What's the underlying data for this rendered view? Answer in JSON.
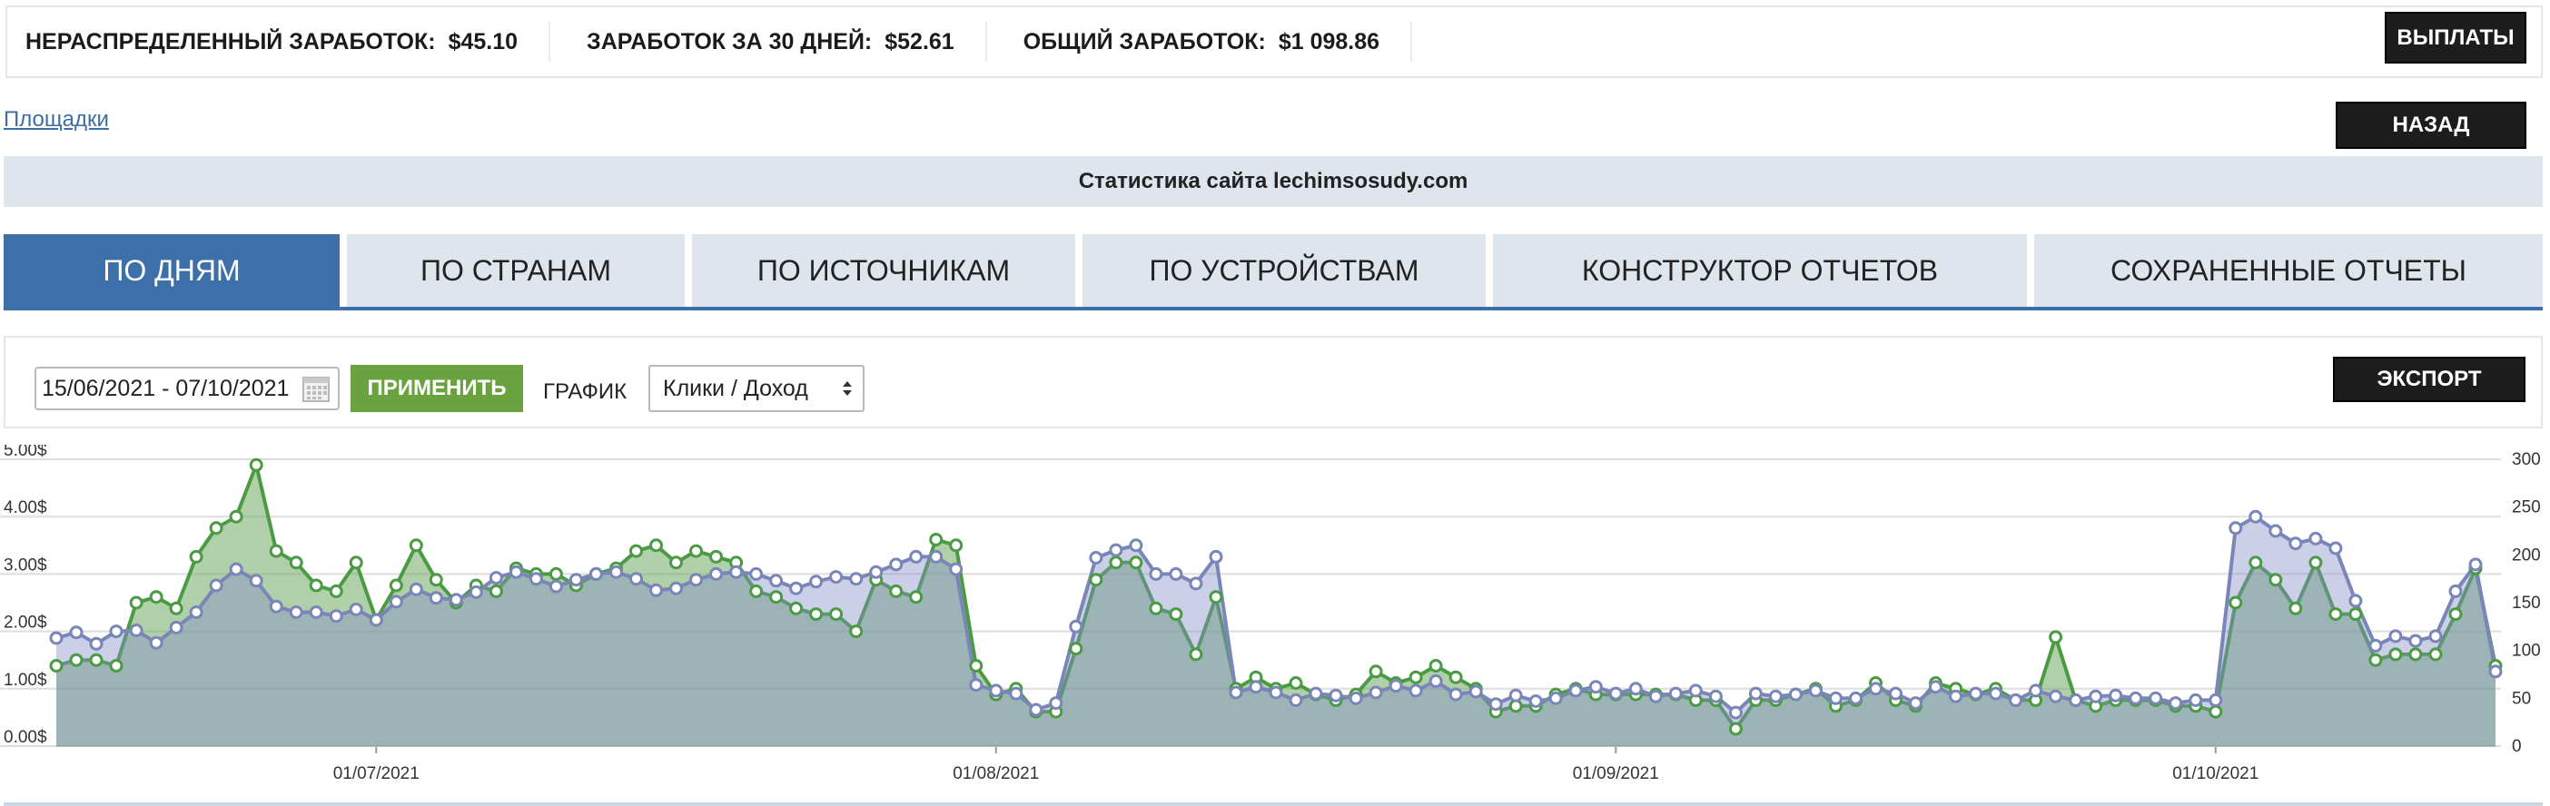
{
  "earnings": [
    {
      "label": "НЕРАСПРЕДЕЛЕННЫЙ ЗАРАБОТОК:",
      "value": "$45.10"
    },
    {
      "label": "ЗАРАБОТОК ЗА 30 ДНЕЙ:",
      "value": "$52.61"
    },
    {
      "label": "ОБЩИЙ ЗАРАБОТОК:",
      "value": "$1 098.86"
    }
  ],
  "buttons": {
    "payouts": "ВЫПЛАТЫ",
    "back": "НАЗАД",
    "export": "ЭКСПОРТ",
    "apply": "ПРИМЕНИТЬ"
  },
  "nav": {
    "sites_link": "Площадки"
  },
  "site_title": "Статистика сайта lechimsosudy.com",
  "tabs": [
    "ПО ДНЯМ",
    "ПО СТРАНАМ",
    "ПО ИСТОЧНИКАМ",
    "ПО УСТРОЙСТВАМ",
    "КОНСТРУКТОР ОТЧЕТОВ",
    "СОХРАНЕННЫЕ ОТЧЕТЫ"
  ],
  "active_tab": 0,
  "filters": {
    "date_range": "15/06/2021 - 07/10/2021",
    "graph_label": "ГРАФИК",
    "graph_select": "Клики / Доход"
  },
  "colors": {
    "accent": "#3d6fa8",
    "apply": "#6aa23f",
    "income_line": "#4b9a44",
    "clicks_line": "#7a85b8"
  },
  "chart_data": {
    "type": "area",
    "x_tick_labels": [
      "01/07/2021",
      "01/08/2021",
      "01/09/2021",
      "01/10/2021"
    ],
    "x_tick_days": [
      16,
      47,
      78,
      108
    ],
    "ylim_left": [
      0,
      5
    ],
    "y_ticks_left": [
      "0.00$",
      "1.00$",
      "2.00$",
      "3.00$",
      "4.00$",
      "5.00$"
    ],
    "ylim_right": [
      0,
      300
    ],
    "y_ticks_right": [
      "0",
      "50",
      "100",
      "150",
      "200",
      "250",
      "300"
    ],
    "grid": true,
    "series": [
      {
        "axis": "left",
        "values": [
          1.4,
          1.5,
          1.5,
          1.4,
          2.5,
          2.6,
          2.4,
          3.3,
          3.8,
          4.0,
          4.9,
          3.4,
          3.2,
          2.8,
          2.7,
          3.2,
          2.2,
          2.8,
          3.5,
          2.9,
          2.5,
          2.8,
          2.7,
          3.1,
          3.0,
          3.0,
          2.8,
          3.0,
          3.1,
          3.4,
          3.5,
          3.2,
          3.4,
          3.3,
          3.2,
          2.7,
          2.6,
          2.4,
          2.3,
          2.3,
          2.0,
          2.9,
          2.7,
          2.6,
          3.6,
          3.5,
          1.4,
          0.9,
          1.0,
          0.6,
          0.6,
          1.7,
          2.9,
          3.2,
          3.2,
          2.4,
          2.3,
          1.6,
          2.6,
          1.0,
          1.2,
          1.0,
          1.1,
          0.9,
          0.8,
          0.9,
          1.3,
          1.1,
          1.2,
          1.4,
          1.2,
          1.0,
          0.6,
          0.7,
          0.7,
          0.9,
          1.0,
          0.9,
          0.9,
          0.9,
          0.9,
          0.9,
          0.8,
          0.8,
          0.3,
          0.8,
          0.8,
          0.9,
          1.0,
          0.7,
          0.8,
          1.1,
          0.8,
          0.7,
          1.1,
          1.0,
          0.9,
          1.0,
          0.8,
          0.8,
          1.9,
          0.8,
          0.7,
          0.8,
          0.8,
          0.8,
          0.7,
          0.7,
          0.6,
          2.5,
          3.2,
          2.9,
          2.4,
          3.2,
          2.3,
          2.3,
          1.5,
          1.6,
          1.6,
          1.6,
          2.3,
          3.1,
          1.4
        ]
      },
      {
        "axis": "right",
        "values": [
          113,
          119,
          107,
          120,
          121,
          108,
          124,
          140,
          168,
          185,
          173,
          146,
          140,
          140,
          136,
          143,
          132,
          151,
          164,
          155,
          153,
          161,
          176,
          182,
          175,
          167,
          174,
          180,
          182,
          175,
          163,
          165,
          174,
          180,
          182,
          180,
          173,
          165,
          172,
          177,
          175,
          182,
          190,
          198,
          198,
          185,
          64,
          58,
          55,
          38,
          45,
          125,
          197,
          205,
          210,
          180,
          180,
          170,
          198,
          56,
          62,
          56,
          48,
          55,
          53,
          50,
          56,
          63,
          58,
          68,
          54,
          57,
          44,
          53,
          47,
          50,
          58,
          62,
          55,
          60,
          52,
          55,
          58,
          52,
          35,
          55,
          52,
          54,
          58,
          50,
          50,
          60,
          55,
          45,
          62,
          52,
          55,
          55,
          48,
          58,
          52,
          48,
          52,
          53,
          50,
          50,
          45,
          48,
          48,
          228,
          240,
          225,
          212,
          217,
          207,
          152,
          105,
          115,
          110,
          115,
          162,
          190,
          78
        ]
      }
    ]
  }
}
